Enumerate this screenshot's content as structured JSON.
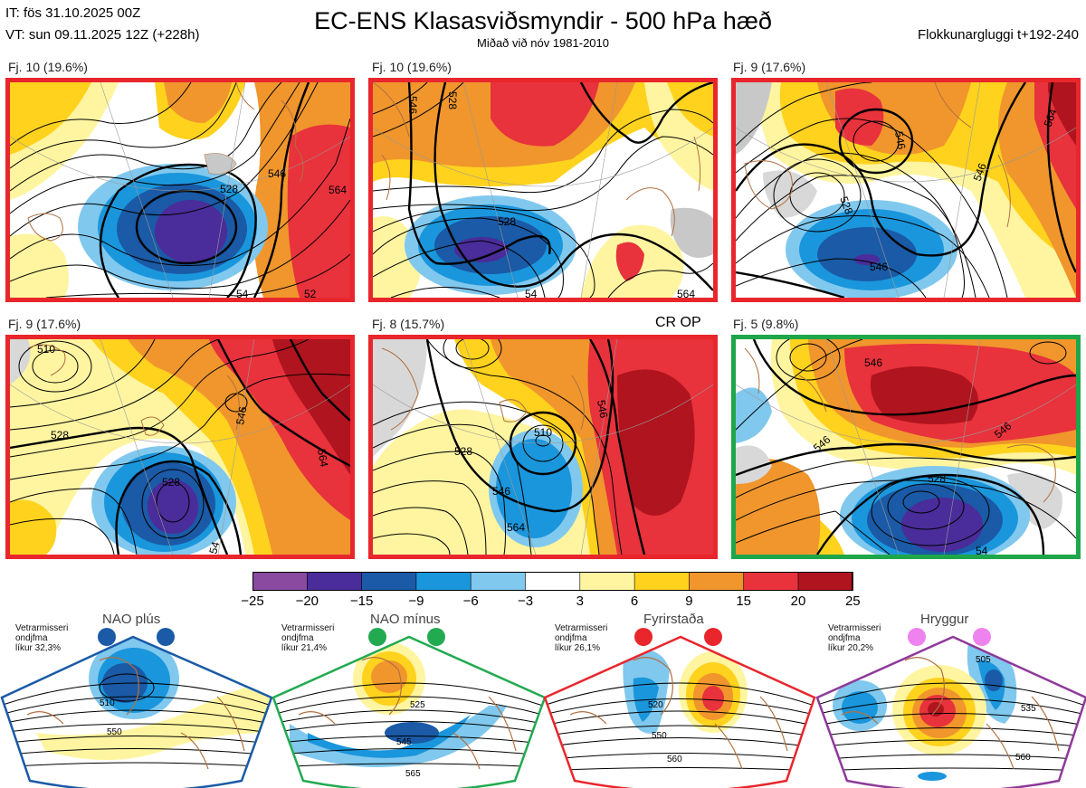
{
  "header": {
    "it": "IT: fös 31.10.2025 00Z",
    "vt": "VT: sun 09.11.2025 12Z  (+228h)",
    "title": "EC-ENS Klasasviðsmyndir - 500 hPa hæð",
    "subtitle": "Miðað við nóv 1981-2010",
    "window": "Flokkunargluggi t+192-240"
  },
  "colors": {
    "red_border": "#e8262c",
    "green_border": "#1ea64a",
    "blue_border": "#1a5aa6",
    "purple_border": "#8e3a9a"
  },
  "clusters": [
    {
      "label": "Fj. 10 (19.6%)",
      "c": [
        "528",
        "546",
        "564",
        "54",
        "52"
      ]
    },
    {
      "label": "Fj. 10 (19.6%)",
      "c": [
        "528",
        "546",
        "564",
        "54",
        "528"
      ]
    },
    {
      "label": "Fj. 9 (17.6%)",
      "c": [
        "528",
        "546",
        "546",
        "564",
        "546"
      ]
    },
    {
      "label": "Fj. 9 (17.6%)",
      "c": [
        "528",
        "546",
        "564",
        "510",
        "54"
      ]
    },
    {
      "label": "Fj. 8 (15.7%)",
      "c": [
        "510",
        "528",
        "546",
        "564",
        "546"
      ]
    },
    {
      "label": "Fj. 5 (9.8%)",
      "c": [
        "528",
        "546",
        "546",
        "546",
        "54"
      ]
    }
  ],
  "cr_op": "CR OP",
  "colorbar": {
    "ticks": [
      "−25",
      "−20",
      "−15",
      "−9",
      "−6",
      "−3",
      "3",
      "6",
      "9",
      "15",
      "20",
      "25"
    ],
    "colors": [
      "#8a4aa0",
      "#4a2c9a",
      "#1a5aa6",
      "#1a96dc",
      "#80c8ee",
      "#ffffff",
      "#fff5a0",
      "#ffd21e",
      "#f0962c",
      "#e8323c",
      "#b0141e"
    ]
  },
  "regimes": [
    {
      "title": "NAO plús",
      "note": [
        "Vetrarmisseri",
        "ondjfma",
        "líkur 32,3%"
      ],
      "c": [
        "510",
        "550"
      ],
      "dot": "#1a5aa6"
    },
    {
      "title": "NAO mínus",
      "note": [
        "Vetrarmisseri",
        "ondjfma",
        "líkur 21,4%"
      ],
      "c": [
        "525",
        "545",
        "565"
      ],
      "dot": "#22aa50"
    },
    {
      "title": "Fyrirstaða",
      "note": [
        "Vetrarmisseri",
        "ondjfma",
        "líkur 26,1%"
      ],
      "c": [
        "520",
        "550",
        "560"
      ],
      "dot": "#e8262c"
    },
    {
      "title": "Hryggur",
      "note": [
        "Vetrarmisseri",
        "ondjfma",
        "líkur 20,2%"
      ],
      "c": [
        "505",
        "535",
        "560"
      ],
      "dot": "#ee82ee"
    }
  ]
}
